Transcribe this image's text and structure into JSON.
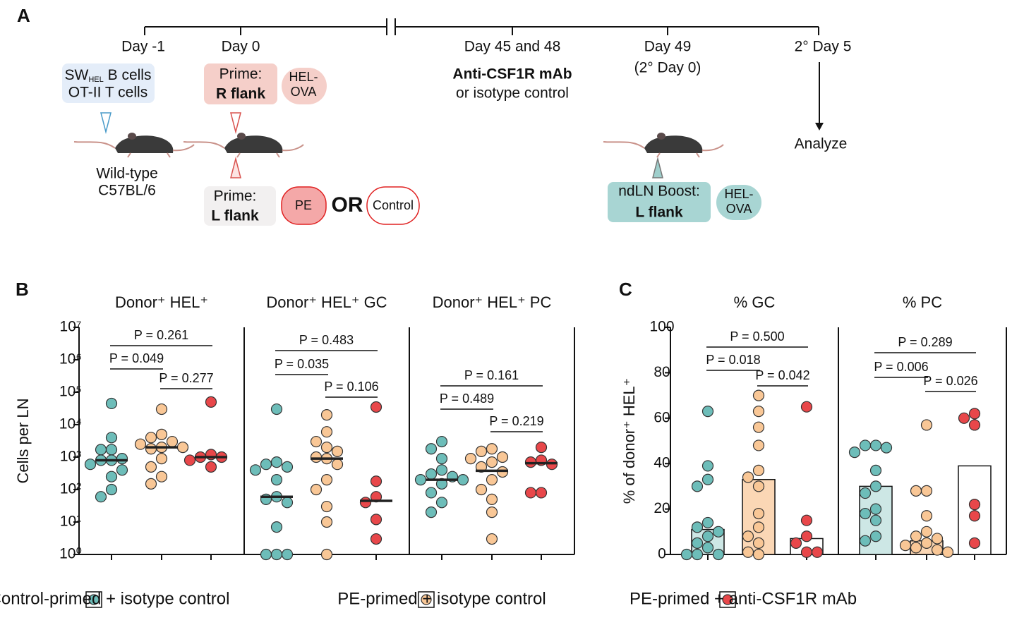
{
  "panel_a": {
    "label": "A",
    "days": [
      "Day -1",
      "Day 0",
      "Day 45 and 48",
      "Day 49",
      "2° Day 5"
    ],
    "day49_sub": "(2° Day 0)",
    "transfer": {
      "main": "SW",
      "sub": "HEL",
      "rest": " B cells",
      "line2": "OT-II T cells"
    },
    "mouse_label": [
      "Wild-type",
      "C57BL/6"
    ],
    "prime_r": [
      "Prime:",
      "R flank"
    ],
    "hel_ova_1": [
      "HEL-",
      "OVA"
    ],
    "prime_l": [
      "Prime:",
      "L flank"
    ],
    "pe": "PE",
    "or": "OR",
    "control": "Control",
    "treatment": [
      "Anti-CSF1R mAb",
      "or isotype control"
    ],
    "boost": [
      "ndLN Boost:",
      "L flank"
    ],
    "hel_ova_2": [
      "HEL-",
      "OVA"
    ],
    "analyze": "Analyze"
  },
  "panel_b": {
    "label": "B",
    "y_label": "Cells per LN",
    "log_scale": true,
    "ylim": [
      1,
      10000000
    ],
    "yticks": [
      {
        "value": 1,
        "label": "10⁰"
      },
      {
        "value": 10,
        "label": "10¹"
      },
      {
        "value": 100,
        "label": "10²"
      },
      {
        "value": 1000,
        "label": "10³"
      },
      {
        "value": 10000,
        "label": "10⁴"
      },
      {
        "value": 100000,
        "label": "10⁵"
      },
      {
        "value": 1000000,
        "label": "10⁶"
      },
      {
        "value": 10000000,
        "label": "10⁷"
      }
    ],
    "subplots": [
      {
        "title": "Donor⁺ HEL⁺",
        "groups": [
          [
            45000,
            4000,
            1700,
            1700,
            900,
            800,
            800,
            600,
            400,
            250,
            100,
            60
          ],
          [
            30000,
            5000,
            4000,
            3000,
            2500,
            2000,
            2000,
            1800,
            900,
            500,
            250,
            150
          ],
          [
            50000,
            1200,
            1000,
            1000,
            800,
            500
          ]
        ],
        "medians": [
          800,
          2000,
          1000
        ],
        "p_values": [
          "P = 0.261",
          "P = 0.049",
          "P = 0.277"
        ]
      },
      {
        "title": "Donor⁺ HEL⁺ GC",
        "groups": [
          [
            30000,
            700,
            600,
            500,
            400,
            200,
            60,
            50,
            40,
            7,
            1,
            1,
            1
          ],
          [
            20000,
            6000,
            3000,
            2000,
            1500,
            1000,
            900,
            600,
            200,
            100,
            30,
            10,
            1
          ],
          [
            35000,
            180,
            60,
            40,
            12,
            3
          ]
        ],
        "medians": [
          60,
          900,
          45
        ],
        "p_values": [
          "P = 0.483",
          "P = 0.035",
          "P = 0.106"
        ]
      },
      {
        "title": "Donor⁺ HEL⁺ PC",
        "groups": [
          [
            3000,
            1800,
            900,
            400,
            300,
            250,
            200,
            200,
            150,
            80,
            40,
            20
          ],
          [
            1800,
            1500,
            1000,
            900,
            700,
            500,
            350,
            200,
            100,
            50,
            20,
            3
          ],
          [
            2000,
            800,
            700,
            600,
            80,
            80
          ]
        ],
        "medians": [
          200,
          380,
          650
        ],
        "p_values": [
          "P = 0.161",
          "P = 0.489",
          "P = 0.219"
        ]
      }
    ]
  },
  "panel_c": {
    "label": "C",
    "y_label": "% of donor⁺ HEL⁺",
    "ylim": [
      0,
      100
    ],
    "yticks": [
      0,
      20,
      40,
      60,
      80,
      100
    ],
    "bar_colors": [
      "#cde7e5",
      "#fbd7b5",
      "#ffffff"
    ],
    "subplots": [
      {
        "title": "% GC",
        "groups": [
          [
            63,
            39,
            33,
            30,
            14,
            12,
            10,
            8,
            5,
            3,
            0,
            0,
            0
          ],
          [
            70,
            63,
            56,
            48,
            37,
            34,
            30,
            18,
            12,
            8,
            5,
            1,
            0
          ],
          [
            65,
            15,
            8,
            5,
            1,
            1
          ]
        ],
        "bars": [
          11,
          33,
          7
        ],
        "p_values": [
          "P = 0.500",
          "P = 0.018",
          "P = 0.042"
        ]
      },
      {
        "title": "% PC",
        "groups": [
          [
            48,
            48,
            47,
            45,
            37,
            30,
            27,
            20,
            18,
            15,
            8,
            6
          ],
          [
            57,
            28,
            28,
            17,
            10,
            8,
            7,
            5,
            4,
            3,
            2,
            1
          ],
          [
            62,
            60,
            57,
            22,
            17,
            5
          ]
        ],
        "bars": [
          30,
          6,
          39
        ],
        "p_values": [
          "P = 0.289",
          "P = 0.006",
          "P = 0.026"
        ]
      }
    ]
  },
  "legend": [
    {
      "name": "Control-primed + isotype control",
      "color": "#6dbdb9"
    },
    {
      "name": "PE-primed + isotype control",
      "color": "#f9c796"
    },
    {
      "name": "PE-primed + anti-CSF1R mAb",
      "color": "#e8474a"
    }
  ]
}
